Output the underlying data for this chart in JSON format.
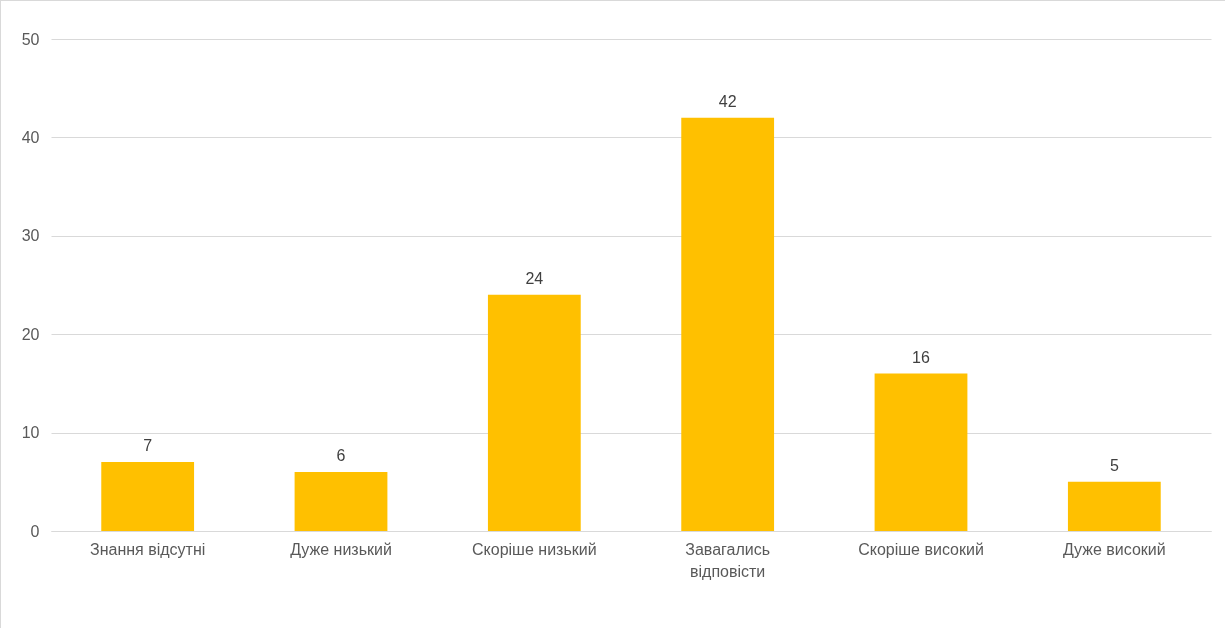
{
  "chart_data": {
    "type": "bar",
    "categories": [
      "Знання відсутні",
      "Дуже низький",
      "Скоріше низький",
      "Завагались відповісти",
      "Скоріше високий",
      "Дуже високий"
    ],
    "values": [
      7,
      6,
      24,
      42,
      16,
      5
    ],
    "color": "#ffc000",
    "ylim": [
      0,
      50
    ],
    "yticks": [
      0,
      10,
      20,
      30,
      40,
      50
    ],
    "grid": "y",
    "data_labels": true
  }
}
